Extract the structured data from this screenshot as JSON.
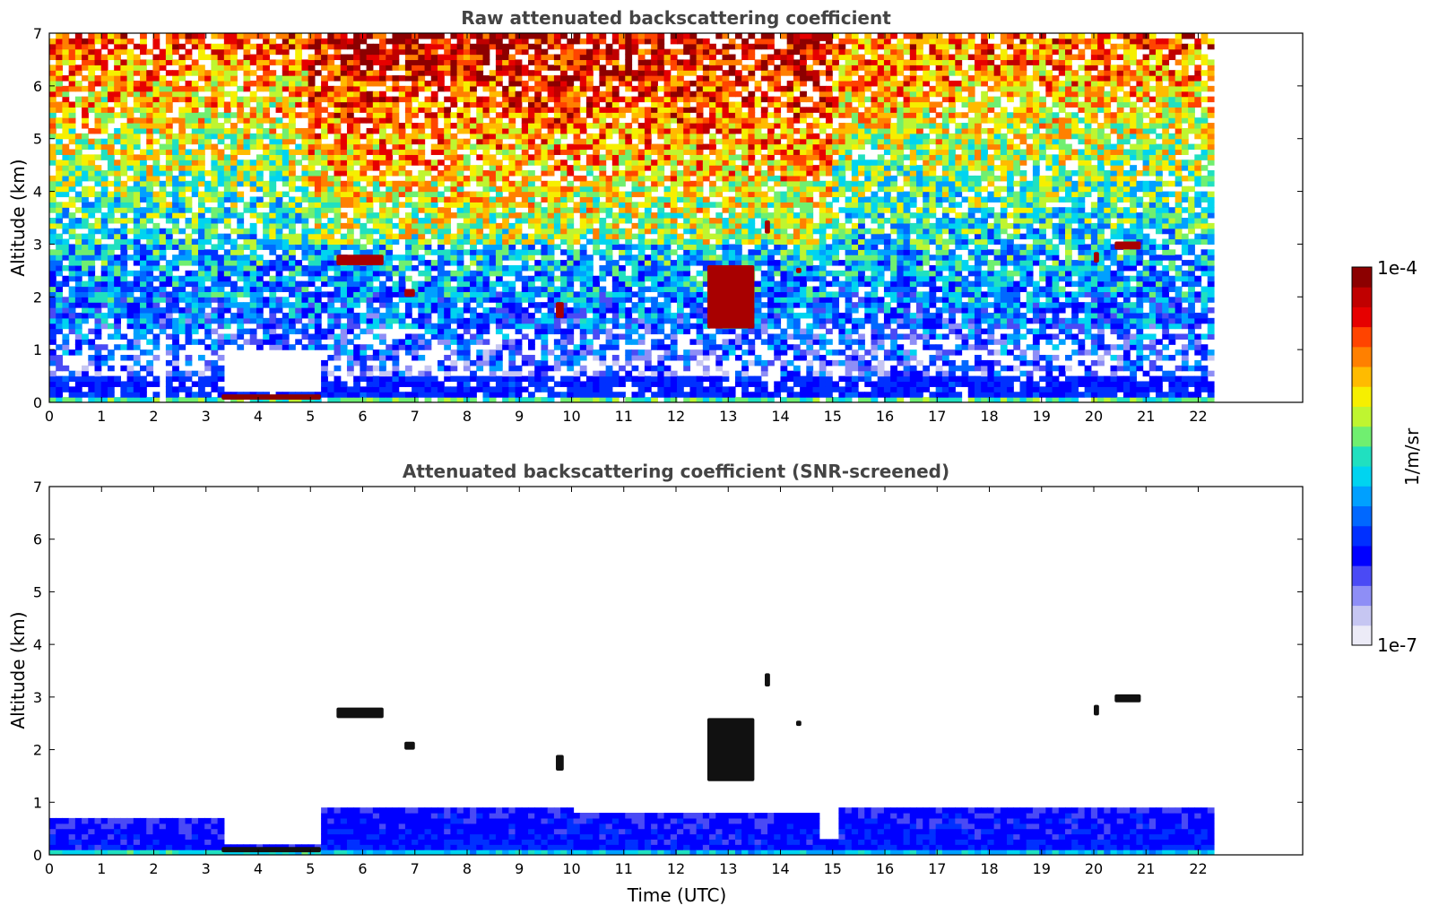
{
  "chart_data": [
    {
      "type": "heatmap",
      "title": "Raw attenuated backscattering coefficient",
      "xlabel": "",
      "ylabel": "Altitude (km)",
      "xlim": [
        0,
        24
      ],
      "ylim": [
        0,
        7
      ],
      "x_ticks": [
        "0",
        "1",
        "2",
        "3",
        "4",
        "5",
        "6",
        "7",
        "8",
        "9",
        "10",
        "11",
        "12",
        "13",
        "14",
        "15",
        "16",
        "17",
        "18",
        "19",
        "20",
        "21",
        "22"
      ],
      "y_ticks": [
        "0",
        "1",
        "2",
        "3",
        "4",
        "5",
        "6",
        "7"
      ],
      "data_end_time": 22.3,
      "features": [
        {
          "kind": "boundary_layer",
          "time": [
            0,
            22.3
          ],
          "altitude": [
            0,
            0.5
          ]
        },
        {
          "kind": "low_signal_gap",
          "time": [
            3.3,
            5.2
          ],
          "altitude": [
            0.2,
            1.0
          ]
        },
        {
          "kind": "aerosol_layer",
          "time": [
            3.3,
            5.2
          ],
          "altitude": [
            0.05,
            0.15
          ]
        },
        {
          "kind": "cloud",
          "time": [
            5.5,
            6.4
          ],
          "altitude": [
            2.6,
            2.8
          ]
        },
        {
          "kind": "cloud",
          "time": [
            6.8,
            7.0
          ],
          "altitude": [
            2.0,
            2.15
          ]
        },
        {
          "kind": "cloud",
          "time": [
            9.7,
            9.85
          ],
          "altitude": [
            1.6,
            1.9
          ]
        },
        {
          "kind": "cloud",
          "time": [
            12.6,
            13.5
          ],
          "altitude": [
            1.4,
            2.6
          ]
        },
        {
          "kind": "cloud",
          "time": [
            13.7,
            13.8
          ],
          "altitude": [
            3.2,
            3.45
          ]
        },
        {
          "kind": "cloud",
          "time": [
            14.3,
            14.4
          ],
          "altitude": [
            2.45,
            2.55
          ]
        },
        {
          "kind": "cloud",
          "time": [
            14.6,
            15.0
          ],
          "altitude": [
            6.85,
            7.0
          ]
        },
        {
          "kind": "cloud",
          "time": [
            20.0,
            20.1
          ],
          "altitude": [
            2.65,
            2.85
          ]
        },
        {
          "kind": "cloud",
          "time": [
            20.4,
            20.9
          ],
          "altitude": [
            2.9,
            3.05
          ]
        }
      ]
    },
    {
      "type": "heatmap",
      "title": "Attenuated backscattering coefficient (SNR-screened)",
      "xlabel": "Time (UTC)",
      "ylabel": "Altitude (km)",
      "xlim": [
        0,
        24
      ],
      "ylim": [
        0,
        7
      ],
      "x_ticks": [
        "0",
        "1",
        "2",
        "3",
        "4",
        "5",
        "6",
        "7",
        "8",
        "9",
        "10",
        "11",
        "12",
        "13",
        "14",
        "15",
        "16",
        "17",
        "18",
        "19",
        "20",
        "21",
        "22"
      ],
      "y_ticks": [
        "0",
        "1",
        "2",
        "3",
        "4",
        "5",
        "6",
        "7"
      ],
      "data_end_time": 22.3,
      "features": [
        {
          "kind": "boundary_layer",
          "time": [
            0,
            3.3
          ],
          "altitude": [
            0,
            0.65
          ]
        },
        {
          "kind": "boundary_layer",
          "time": [
            3.3,
            5.2
          ],
          "altitude": [
            0,
            0.2
          ]
        },
        {
          "kind": "boundary_layer",
          "time": [
            5.2,
            22.3
          ],
          "altitude": [
            0,
            0.9
          ]
        },
        {
          "kind": "aerosol_layer",
          "time": [
            3.3,
            5.2
          ],
          "altitude": [
            0.05,
            0.15
          ]
        },
        {
          "kind": "cloud",
          "time": [
            5.5,
            6.4
          ],
          "altitude": [
            2.6,
            2.8
          ]
        },
        {
          "kind": "cloud",
          "time": [
            6.8,
            7.0
          ],
          "altitude": [
            2.0,
            2.15
          ]
        },
        {
          "kind": "cloud",
          "time": [
            9.7,
            9.85
          ],
          "altitude": [
            1.6,
            1.9
          ]
        },
        {
          "kind": "cloud",
          "time": [
            12.6,
            13.5
          ],
          "altitude": [
            1.4,
            2.6
          ]
        },
        {
          "kind": "cloud",
          "time": [
            13.7,
            13.8
          ],
          "altitude": [
            3.2,
            3.45
          ]
        },
        {
          "kind": "cloud",
          "time": [
            14.3,
            14.4
          ],
          "altitude": [
            2.45,
            2.55
          ]
        },
        {
          "kind": "cloud",
          "time": [
            20.0,
            20.1
          ],
          "altitude": [
            2.65,
            2.85
          ]
        },
        {
          "kind": "cloud",
          "time": [
            20.4,
            20.9
          ],
          "altitude": [
            2.9,
            3.05
          ]
        }
      ]
    }
  ],
  "colorbar": {
    "label": "1/m/sr",
    "max_label": "1e-4",
    "min_label": "1e-7",
    "scale": "log",
    "range": [
      1e-07,
      0.0001
    ],
    "colormap": [
      "#ecebf7",
      "#c6c6f2",
      "#8e8ef6",
      "#4a4af5",
      "#0000ff",
      "#0030ff",
      "#0068ff",
      "#00a0ff",
      "#00d4f0",
      "#20e0c0",
      "#70ef70",
      "#bff530",
      "#f6ef00",
      "#ffbb00",
      "#ff8000",
      "#ff4400",
      "#e60000",
      "#c00000",
      "#8c0000"
    ]
  }
}
